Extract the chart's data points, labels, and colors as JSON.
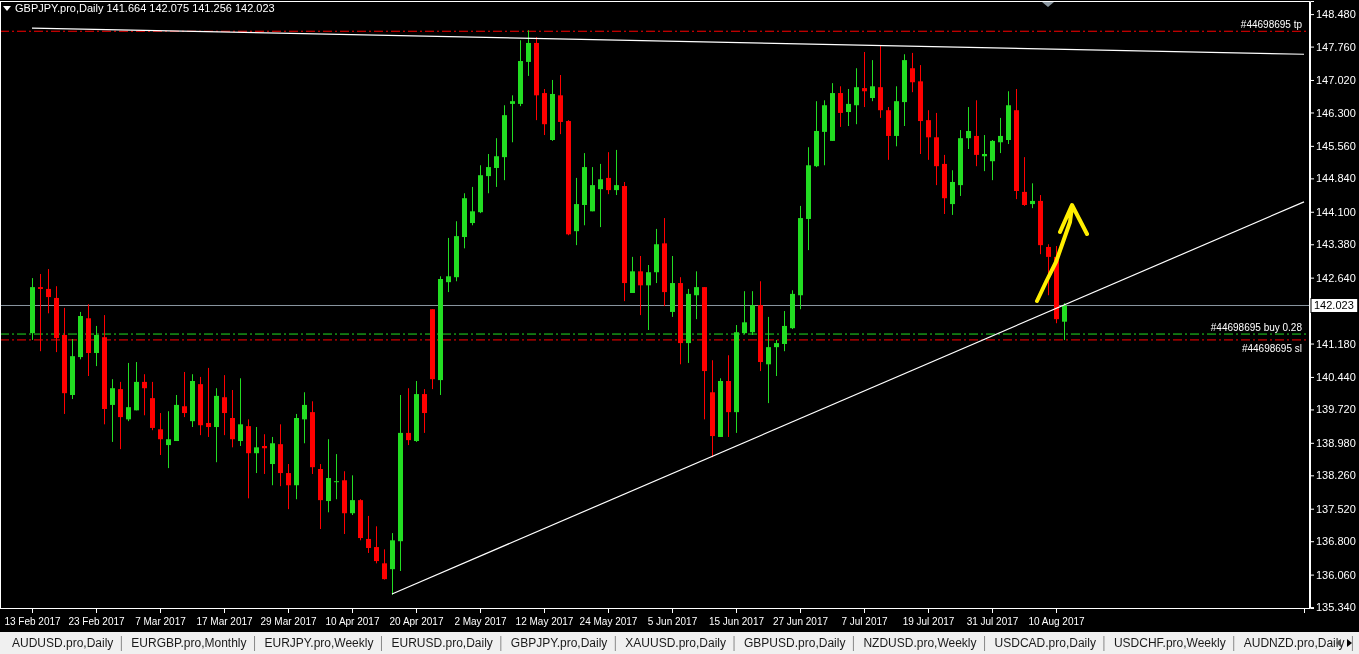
{
  "chart_data": {
    "type": "candlestick",
    "title": "GBPJPY.pro,Daily  141.664 142.075 141.256 142.023",
    "categories": [
      "13 Feb 2017",
      null,
      null,
      null,
      null,
      null,
      null,
      null,
      "23 Feb 2017",
      null,
      null,
      null,
      null,
      null,
      null,
      null,
      "7 Mar 2017",
      null,
      null,
      null,
      null,
      null,
      null,
      null,
      "17 Mar 2017",
      null,
      null,
      null,
      null,
      null,
      null,
      null,
      "29 Mar 2017",
      null,
      null,
      null,
      null,
      null,
      null,
      null,
      "10 Apr 2017",
      null,
      null,
      null,
      null,
      null,
      null,
      null,
      "20 Apr 2017",
      null,
      null,
      null,
      null,
      null,
      null,
      null,
      "2 May 2017",
      null,
      null,
      null,
      null,
      null,
      null,
      null,
      "12 May 2017",
      null,
      null,
      null,
      null,
      null,
      null,
      null,
      "24 May 2017",
      null,
      null,
      null,
      null,
      null,
      null,
      null,
      "5 Jun 2017",
      null,
      null,
      null,
      null,
      null,
      null,
      null,
      "15 Jun 2017",
      null,
      null,
      null,
      null,
      null,
      null,
      null,
      "27 Jun 2017",
      null,
      null,
      null,
      null,
      null,
      null,
      null,
      "7 Jul 2017",
      null,
      null,
      null,
      null,
      null,
      null,
      null,
      "19 Jul 2017",
      null,
      null,
      null,
      null,
      null,
      null,
      null,
      "31 Jul 2017",
      null,
      null,
      null,
      null,
      null,
      null,
      null,
      "10 Aug 2017",
      null,
      null,
      null,
      null,
      null,
      null,
      null,
      null,
      null,
      null,
      null,
      null,
      null,
      null,
      null,
      null,
      null,
      null,
      null,
      null,
      null,
      null,
      null,
      null,
      null,
      null,
      null,
      null,
      null,
      null,
      null
    ],
    "ohlc": [
      [
        141.41,
        142.63,
        141.26,
        142.43
      ],
      [
        142.43,
        142.72,
        141.01,
        142.39
      ],
      [
        142.39,
        142.83,
        141.85,
        142.21
      ],
      [
        142.19,
        142.45,
        140.99,
        141.3
      ],
      [
        141.37,
        141.97,
        139.62,
        140.08
      ],
      [
        140.04,
        141.28,
        139.95,
        140.9
      ],
      [
        140.88,
        141.88,
        140.83,
        141.79
      ],
      [
        141.74,
        142.05,
        140.46,
        140.97
      ],
      [
        140.97,
        141.57,
        140.68,
        141.37
      ],
      [
        141.32,
        141.81,
        139.39,
        139.73
      ],
      [
        139.82,
        140.39,
        139.0,
        140.19
      ],
      [
        140.17,
        140.33,
        138.84,
        139.55
      ],
      [
        139.5,
        140.75,
        139.46,
        139.77
      ],
      [
        139.7,
        140.77,
        139.7,
        140.33
      ],
      [
        140.33,
        140.5,
        139.59,
        140.19
      ],
      [
        139.97,
        140.33,
        139.26,
        139.31
      ],
      [
        139.28,
        139.64,
        138.71,
        139.06
      ],
      [
        138.93,
        139.68,
        138.42,
        139.06
      ],
      [
        139.02,
        140.04,
        139.02,
        139.82
      ],
      [
        139.79,
        140.55,
        139.55,
        139.64
      ],
      [
        139.46,
        140.5,
        139.33,
        140.35
      ],
      [
        140.28,
        140.44,
        139.15,
        139.37
      ],
      [
        139.42,
        140.64,
        139.11,
        139.33
      ],
      [
        139.33,
        140.19,
        138.55,
        140.02
      ],
      [
        139.99,
        140.48,
        139.15,
        139.64
      ],
      [
        139.53,
        140.15,
        138.88,
        139.06
      ],
      [
        139.02,
        140.41,
        138.91,
        139.39
      ],
      [
        139.35,
        139.5,
        137.75,
        138.75
      ],
      [
        138.75,
        139.33,
        138.31,
        138.88
      ],
      [
        138.91,
        139.17,
        138.29,
        138.86
      ],
      [
        138.51,
        139.11,
        138.04,
        138.97
      ],
      [
        138.95,
        139.39,
        138.02,
        138.31
      ],
      [
        138.31,
        138.51,
        137.51,
        138.04
      ],
      [
        138.04,
        139.62,
        137.73,
        139.53
      ],
      [
        139.5,
        140.1,
        138.97,
        139.82
      ],
      [
        139.66,
        139.9,
        138.29,
        138.44
      ],
      [
        138.4,
        138.51,
        137.07,
        137.71
      ],
      [
        137.69,
        139.06,
        137.44,
        138.2
      ],
      [
        138.11,
        138.73,
        137.73,
        138.13
      ],
      [
        138.15,
        138.35,
        136.96,
        137.42
      ],
      [
        137.42,
        138.26,
        137.38,
        137.71
      ],
      [
        137.71,
        137.73,
        136.82,
        136.87
      ],
      [
        136.85,
        137.36,
        136.54,
        136.65
      ],
      [
        136.67,
        137.13,
        136.31,
        136.36
      ],
      [
        136.31,
        136.62,
        135.95,
        135.96
      ],
      [
        136.18,
        136.98,
        135.61,
        136.82
      ],
      [
        136.8,
        140.04,
        136.14,
        139.2
      ],
      [
        139.2,
        140.19,
        138.93,
        139.04
      ],
      [
        139.02,
        140.35,
        139.0,
        140.06
      ],
      [
        140.06,
        140.17,
        139.2,
        139.64
      ],
      [
        141.94,
        141.94,
        140.17,
        140.39
      ],
      [
        140.37,
        142.67,
        140.04,
        142.61
      ],
      [
        142.54,
        143.52,
        142.32,
        142.67
      ],
      [
        142.65,
        143.89,
        142.56,
        143.56
      ],
      [
        143.54,
        144.51,
        143.29,
        144.4
      ],
      [
        143.85,
        144.65,
        143.8,
        144.11
      ],
      [
        144.09,
        145.13,
        144.07,
        144.91
      ],
      [
        144.89,
        145.38,
        144.51,
        145.09
      ],
      [
        145.07,
        145.73,
        144.65,
        145.33
      ],
      [
        145.31,
        146.46,
        144.8,
        146.24
      ],
      [
        146.49,
        146.68,
        145.64,
        146.55
      ],
      [
        146.49,
        147.9,
        146.44,
        147.44
      ],
      [
        147.42,
        148.12,
        147.11,
        147.84
      ],
      [
        147.84,
        147.97,
        146.13,
        146.68
      ],
      [
        146.73,
        146.82,
        145.8,
        146.04
      ],
      [
        145.69,
        147.02,
        145.67,
        146.71
      ],
      [
        146.68,
        147.13,
        145.82,
        146.09
      ],
      [
        146.11,
        146.13,
        143.58,
        143.6
      ],
      [
        143.67,
        144.85,
        143.36,
        144.27
      ],
      [
        144.25,
        145.4,
        143.8,
        145.09
      ],
      [
        144.11,
        145.09,
        144.11,
        144.69
      ],
      [
        144.6,
        145.16,
        143.76,
        144.82
      ],
      [
        144.85,
        145.42,
        144.49,
        144.58
      ],
      [
        144.58,
        145.47,
        144.47,
        144.69
      ],
      [
        144.67,
        144.76,
        142.12,
        142.52
      ],
      [
        142.3,
        143.1,
        142.3,
        142.78
      ],
      [
        142.78,
        143.12,
        141.81,
        142.47
      ],
      [
        142.47,
        142.92,
        141.48,
        142.76
      ],
      [
        142.76,
        143.72,
        142.52,
        143.38
      ],
      [
        143.4,
        143.96,
        142.01,
        142.32
      ],
      [
        141.88,
        143.12,
        141.77,
        142.52
      ],
      [
        142.52,
        142.65,
        140.72,
        141.19
      ],
      [
        141.19,
        142.39,
        140.75,
        142.28
      ],
      [
        142.25,
        142.78,
        141.72,
        142.43
      ],
      [
        142.43,
        142.43,
        139.5,
        140.57
      ],
      [
        140.1,
        140.81,
        138.66,
        139.13
      ],
      [
        139.11,
        140.41,
        139.11,
        140.35
      ],
      [
        140.35,
        140.92,
        139.11,
        139.66
      ],
      [
        139.66,
        141.59,
        139.2,
        141.43
      ],
      [
        141.41,
        142.34,
        141.39,
        141.65
      ],
      [
        141.43,
        142.34,
        141.37,
        142.03
      ],
      [
        142.03,
        142.56,
        140.57,
        140.77
      ],
      [
        140.72,
        141.77,
        139.86,
        141.1
      ],
      [
        141.1,
        141.26,
        140.46,
        141.19
      ],
      [
        141.17,
        141.9,
        141.01,
        141.57
      ],
      [
        141.52,
        142.36,
        141.5,
        142.28
      ],
      [
        142.25,
        144.23,
        141.94,
        143.96
      ],
      [
        143.94,
        145.53,
        143.25,
        145.13
      ],
      [
        145.11,
        146.55,
        145.09,
        145.89
      ],
      [
        145.87,
        146.57,
        145.13,
        146.46
      ],
      [
        145.67,
        146.95,
        145.67,
        146.73
      ],
      [
        146.73,
        146.88,
        145.98,
        146.29
      ],
      [
        146.31,
        146.82,
        146.0,
        146.49
      ],
      [
        146.46,
        147.28,
        146.04,
        146.86
      ],
      [
        146.84,
        147.64,
        146.42,
        146.77
      ],
      [
        146.62,
        147.46,
        146.55,
        146.88
      ],
      [
        146.86,
        147.79,
        146.18,
        146.35
      ],
      [
        146.35,
        146.42,
        145.25,
        145.78
      ],
      [
        145.78,
        146.88,
        145.55,
        146.55
      ],
      [
        146.53,
        147.59,
        146.0,
        147.46
      ],
      [
        147.28,
        147.62,
        146.75,
        146.97
      ],
      [
        146.99,
        147.35,
        145.38,
        146.11
      ],
      [
        146.13,
        146.35,
        145.25,
        145.75
      ],
      [
        145.75,
        146.29,
        144.69,
        145.11
      ],
      [
        145.16,
        145.36,
        144.05,
        144.4
      ],
      [
        144.27,
        145.02,
        144.03,
        144.76
      ],
      [
        144.69,
        145.91,
        144.45,
        145.73
      ],
      [
        145.73,
        146.42,
        145.49,
        145.89
      ],
      [
        145.78,
        146.57,
        145.11,
        145.36
      ],
      [
        145.33,
        145.8,
        145.0,
        145.38
      ],
      [
        145.22,
        145.69,
        144.8,
        145.67
      ],
      [
        145.64,
        146.18,
        145.4,
        145.78
      ],
      [
        145.69,
        146.77,
        145.6,
        146.46
      ],
      [
        146.35,
        146.82,
        144.38,
        144.56
      ],
      [
        144.54,
        145.31,
        144.23,
        144.25
      ],
      [
        144.27,
        144.73,
        144.18,
        144.34
      ],
      [
        144.34,
        144.47,
        143.16,
        143.36
      ],
      [
        143.32,
        143.38,
        142.25,
        143.1
      ],
      [
        143.1,
        143.34,
        141.63,
        141.72
      ],
      [
        141.664,
        142.075,
        141.256,
        142.023
      ],
      null,
      null,
      null,
      null,
      null,
      null,
      null,
      null,
      null,
      null,
      null,
      null,
      null,
      null,
      null,
      null,
      null,
      null,
      null,
      null,
      null,
      null,
      null,
      null,
      null,
      null,
      null,
      null,
      null,
      null
    ],
    "colors": [
      "#22dd22",
      "#ff0000",
      "#ff0000",
      "#ff0000",
      "#ff0000",
      "#22dd22",
      "#22dd22",
      "#ff0000",
      "#22dd22",
      "#ff0000",
      "#22dd22",
      "#ff0000",
      "#22dd22",
      "#22dd22",
      "#ff0000",
      "#ff0000",
      "#ff0000",
      "#22dd22",
      "#22dd22",
      "#ff0000",
      "#22dd22",
      "#ff0000",
      "#ff0000",
      "#22dd22",
      "#ff0000",
      "#ff0000",
      "#22dd22",
      "#ff0000",
      "#22dd22",
      "#ff0000",
      "#22dd22",
      "#ff0000",
      "#ff0000",
      "#22dd22",
      "#22dd22",
      "#ff0000",
      "#ff0000",
      "#22dd22",
      "#22dd22",
      "#ff0000",
      "#22dd22",
      "#ff0000",
      "#ff0000",
      "#ff0000",
      "#ff0000",
      "#22dd22",
      "#22dd22",
      "#ff0000",
      "#22dd22",
      "#ff0000",
      "#ff0000",
      "#22dd22",
      "#22dd22",
      "#22dd22",
      "#22dd22",
      "#22dd22",
      "#22dd22",
      "#22dd22",
      "#22dd22",
      "#22dd22",
      "#22dd22",
      "#22dd22",
      "#22dd22",
      "#ff0000",
      "#ff0000",
      "#22dd22",
      "#ff0000",
      "#ff0000",
      "#22dd22",
      "#22dd22",
      "#22dd22",
      "#22dd22",
      "#ff0000",
      "#22dd22",
      "#ff0000",
      "#22dd22",
      "#ff0000",
      "#22dd22",
      "#22dd22",
      "#ff0000",
      "#22dd22",
      "#ff0000",
      "#22dd22",
      "#22dd22",
      "#ff0000",
      "#ff0000",
      "#22dd22",
      "#ff0000",
      "#22dd22",
      "#22dd22",
      "#22dd22",
      "#ff0000",
      "#22dd22",
      "#22dd22",
      "#22dd22",
      "#22dd22",
      "#22dd22",
      "#22dd22",
      "#22dd22",
      "#22dd22",
      "#22dd22",
      "#ff0000",
      "#22dd22",
      "#22dd22",
      "#ff0000",
      "#22dd22",
      "#ff0000",
      "#ff0000",
      "#22dd22",
      "#22dd22",
      "#ff0000",
      "#ff0000",
      "#ff0000",
      "#ff0000",
      "#ff0000",
      "#22dd22",
      "#22dd22",
      "#22dd22",
      "#ff0000",
      "#22dd22",
      "#22dd22",
      "#22dd22",
      "#22dd22",
      "#ff0000",
      "#ff0000",
      "#22dd22",
      "#ff0000",
      "#ff0000",
      "#ff0000",
      "#22dd22",
      null,
      null,
      null,
      null,
      null,
      null,
      null,
      null,
      null,
      null,
      null,
      null,
      null,
      null,
      null,
      null,
      null,
      null,
      null,
      null,
      null,
      null,
      null,
      null,
      null,
      null,
      null,
      null,
      null,
      null
    ],
    "series": [
      {
        "type": "line",
        "values": [
          148.17,
          null,
          null,
          null,
          null,
          null,
          null,
          null,
          null,
          null,
          null,
          null,
          null,
          null,
          null,
          null,
          null,
          null,
          null,
          null,
          null,
          null,
          null,
          null,
          null,
          null,
          null,
          null,
          null,
          null,
          null,
          null,
          null,
          null,
          null,
          null,
          null,
          null,
          null,
          null,
          null,
          null,
          null,
          null,
          null,
          null,
          null,
          null,
          null,
          null,
          null,
          null,
          null,
          null,
          null,
          null,
          null,
          null,
          null,
          null,
          null,
          null,
          null,
          null,
          null,
          null,
          null,
          null,
          null,
          null,
          null,
          null,
          null,
          null,
          null,
          null,
          null,
          null,
          null,
          null,
          null,
          null,
          null,
          null,
          null,
          null,
          null,
          null,
          null,
          null,
          null,
          null,
          null,
          null,
          null,
          null,
          null,
          null,
          null,
          null,
          null,
          null,
          null,
          null,
          null,
          null,
          null,
          null,
          null,
          null,
          null,
          null,
          null,
          null,
          null,
          null,
          null,
          null,
          null,
          null,
          null,
          null,
          null,
          null,
          null,
          null,
          null,
          null,
          null,
          null,
          null,
          null,
          null,
          null,
          null,
          null,
          null,
          null,
          null,
          null,
          null,
          null,
          null,
          null,
          null,
          null,
          null,
          null,
          null,
          null,
          null,
          null,
          null,
          null,
          null,
          null,
          null,
          null,
          null,
          147.59
        ],
        "color": "#ffffff"
      },
      {
        "type": "line",
        "values": [
          null,
          null,
          null,
          null,
          null,
          null,
          null,
          null,
          null,
          null,
          null,
          null,
          null,
          null,
          null,
          null,
          null,
          null,
          null,
          null,
          null,
          null,
          null,
          null,
          null,
          null,
          null,
          null,
          null,
          null,
          null,
          null,
          null,
          null,
          null,
          null,
          null,
          null,
          null,
          null,
          null,
          null,
          null,
          null,
          null,
          135.63,
          null,
          null,
          null,
          null,
          null,
          null,
          null,
          null,
          null,
          null,
          null,
          null,
          null,
          null,
          null,
          null,
          null,
          null,
          null,
          null,
          null,
          null,
          null,
          null,
          null,
          null,
          null,
          null,
          null,
          null,
          null,
          null,
          null,
          null,
          null,
          null,
          null,
          null,
          null,
          null,
          null,
          null,
          null,
          null,
          null,
          null,
          null,
          null,
          null,
          null,
          null,
          null,
          null,
          null,
          null,
          null,
          null,
          null,
          null,
          null,
          null,
          null,
          null,
          null,
          null,
          null,
          null,
          null,
          null,
          null,
          null,
          null,
          null,
          null,
          null,
          null,
          null,
          null,
          null,
          null,
          null,
          null,
          null,
          null,
          null,
          null,
          null,
          null,
          null,
          null,
          null,
          null,
          null,
          null,
          null,
          null,
          null,
          null,
          null,
          null,
          null,
          null,
          null,
          null,
          null,
          null,
          null,
          null,
          null,
          null,
          null,
          null,
          null,
          144.32
        ],
        "color": "#ffffff"
      }
    ],
    "ylim": [
      135.32,
      148.77
    ],
    "yticks": [
      {
        "value": 135.34,
        "label": "135.340"
      },
      {
        "value": 136.06,
        "label": "136.060"
      },
      {
        "value": 136.8,
        "label": "136.800"
      },
      {
        "value": 137.52,
        "label": "137.520"
      },
      {
        "value": 138.26,
        "label": "138.260"
      },
      {
        "value": 138.98,
        "label": "138.980"
      },
      {
        "value": 139.72,
        "label": "139.720"
      },
      {
        "value": 140.44,
        "label": "140.440"
      },
      {
        "value": 141.18,
        "label": "141.180"
      },
      {
        "value": 141.92,
        "label": null
      },
      {
        "value": 142.64,
        "label": "142.640"
      },
      {
        "value": 143.38,
        "label": "143.380"
      },
      {
        "value": 144.1,
        "label": "144.100"
      },
      {
        "value": 144.84,
        "label": "144.840"
      },
      {
        "value": 145.56,
        "label": "145.560"
      },
      {
        "value": 146.3,
        "label": "146.300"
      },
      {
        "value": 147.02,
        "label": "147.020"
      },
      {
        "value": 147.76,
        "label": "147.760"
      },
      {
        "value": 148.48,
        "label": "148.480"
      }
    ],
    "ref_lines": [
      {
        "axis": "y",
        "value": 148.1,
        "label": "#44698695 tp",
        "color": "#ff0000",
        "line_style": "dashed"
      },
      {
        "axis": "y",
        "value": 141.39,
        "label": "#44698695 buy 0.28",
        "color": "#22dd22",
        "line_style": "dashed"
      },
      {
        "axis": "y",
        "value": 141.26,
        "label": "#44698695 sl",
        "color": "#ff0000",
        "line_style": "dashed"
      },
      {
        "axis": "y",
        "value": 142.023,
        "label": "142.023",
        "color": "#8a96a0",
        "line_style": "solid"
      }
    ],
    "annotations": [
      "AUDUSD.pro,Daily",
      "EURGBP.pro,Monthly",
      "EURJPY.pro,Weekly",
      "EURUSD.pro,Daily",
      "GBPJPY.pro,Daily",
      "XAUUSD.pro,Daily",
      "GBPUSD.pro,Daily",
      "NZDUSD.pro,Weekly",
      "USDCAD.pro,Daily",
      "USDCHF.pro,Weekly",
      "AUDNZD.pro,Daily"
    ],
    "grid": false
  }
}
